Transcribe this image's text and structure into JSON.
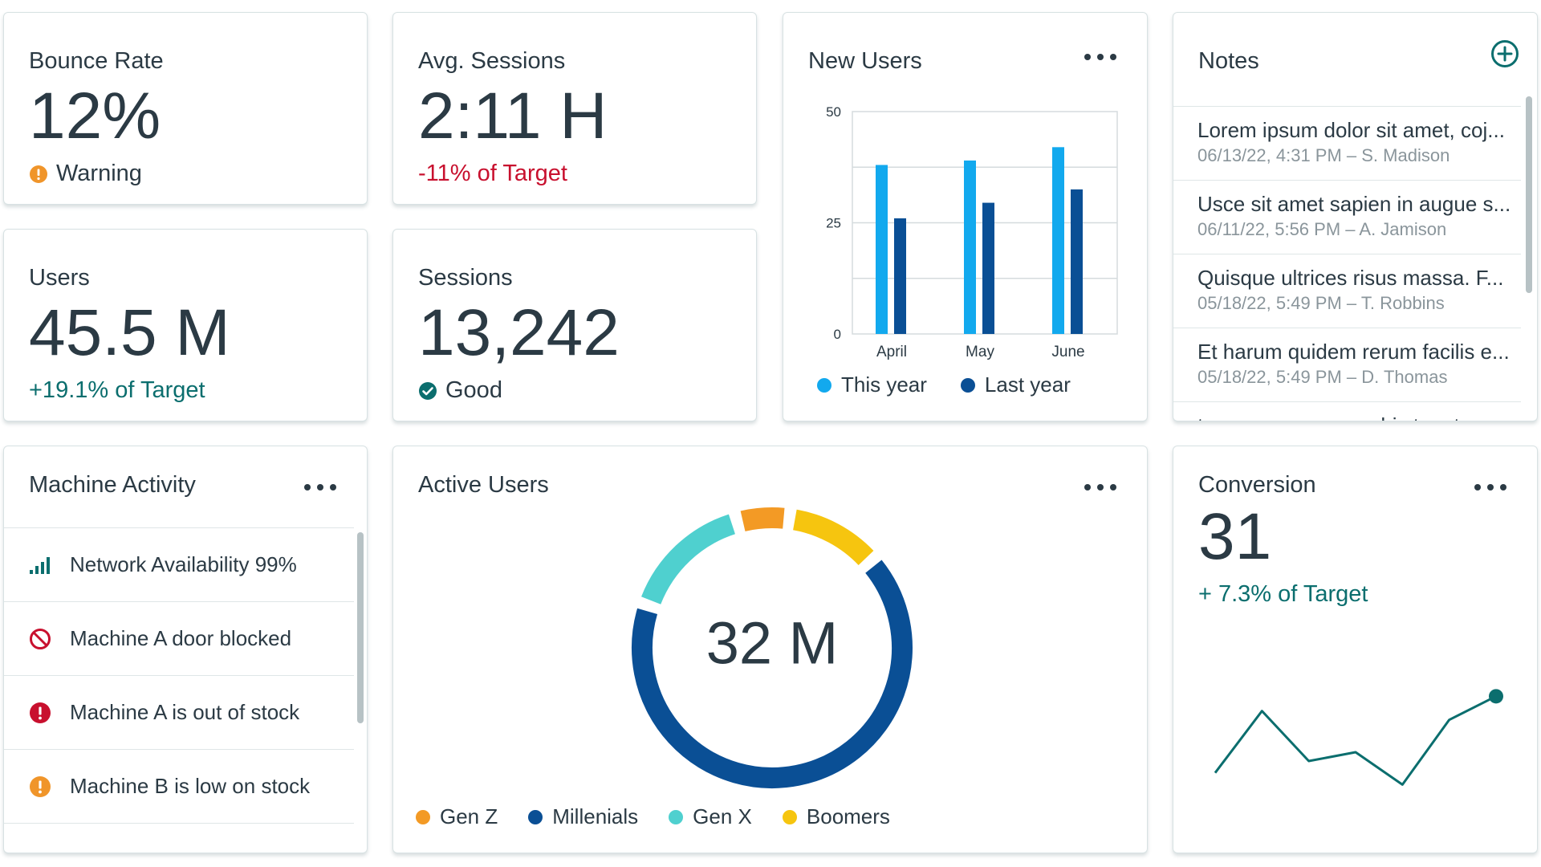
{
  "colors": {
    "text": "#2b3a44",
    "muted": "#8a959b",
    "positive": "#0b6e6e",
    "negative": "#c8102e",
    "warning": "#f0952a",
    "good": "#0b6e6e",
    "this_year": "#12a9ee",
    "last_year": "#0a4f95",
    "gen_z": "#f39a25",
    "millenials": "#0a4f95",
    "gen_x": "#4fd0cf",
    "boomers": "#f6c50f",
    "line": "#0b6e6e"
  },
  "bounce_rate": {
    "title": "Bounce Rate",
    "value": "12%",
    "status": "Warning",
    "status_icon": "warning-icon"
  },
  "avg_sessions": {
    "title": "Avg. Sessions",
    "value": "2:11 H",
    "target": "-11% of Target"
  },
  "users": {
    "title": "Users",
    "value": "45.5 M",
    "target": "+19.1% of Target"
  },
  "sessions": {
    "title": "Sessions",
    "value": "13,242",
    "status": "Good",
    "status_icon": "check-circle-icon"
  },
  "new_users": {
    "title": "New Users",
    "legend": [
      "This year",
      "Last year"
    ],
    "chart_data": {
      "type": "bar",
      "categories": [
        "April",
        "May",
        "June"
      ],
      "series": [
        {
          "name": "This year",
          "values": [
            38,
            39,
            42
          ]
        },
        {
          "name": "Last year",
          "values": [
            26,
            29.5,
            32.5
          ]
        }
      ],
      "yticks": [
        0,
        25,
        50
      ],
      "ylim": [
        0,
        50
      ],
      "grid": true,
      "legend_position": "bottom"
    }
  },
  "notes": {
    "title": "Notes",
    "add_icon": "plus-circle-icon",
    "items": [
      {
        "text": "Lorem ipsum dolor sit amet, coj...",
        "meta": "06/13/22, 4:31 PM – S. Madison"
      },
      {
        "text": "Usce sit amet sapien in augue s...",
        "meta": "06/11/22, 5:56 PM – A. Jamison"
      },
      {
        "text": "Quisque ultrices risus massa. F...",
        "meta": "05/18/22, 5:49 PM – T. Robbins"
      },
      {
        "text": "Et harum quidem rerum facilis e...",
        "meta": "05/18/22, 5:49 PM – D. Thomas"
      },
      {
        "text": "taque earum rerum hic tenetur ...",
        "meta": ""
      }
    ]
  },
  "machine_activity": {
    "title": "Machine Activity",
    "items": [
      {
        "label": "Network Availability 99%",
        "icon": "signal-bars-icon"
      },
      {
        "label": "Machine A door blocked",
        "icon": "blocked-icon"
      },
      {
        "label": "Machine A is out of stock",
        "icon": "error-icon"
      },
      {
        "label": "Machine B is low on stock",
        "icon": "warning-icon"
      }
    ]
  },
  "active_users": {
    "title": "Active Users",
    "center_value": "32 M",
    "legend": [
      "Gen Z",
      "Millenials",
      "Gen X",
      "Boomers"
    ],
    "chart_data": {
      "type": "pie",
      "categories": [
        "Gen Z",
        "Millenials",
        "Gen X",
        "Boomers"
      ],
      "values": [
        5,
        65,
        14,
        10
      ],
      "legend_position": "bottom"
    }
  },
  "conversion": {
    "title": "Conversion",
    "value": "31",
    "target": "+ 7.3% of Target",
    "chart_data": {
      "type": "line",
      "x": [
        1,
        2,
        3,
        4,
        5,
        6,
        7
      ],
      "values": [
        20,
        41,
        24,
        27,
        16,
        38,
        46
      ],
      "ylim": [
        0,
        60
      ],
      "grid": false
    }
  }
}
